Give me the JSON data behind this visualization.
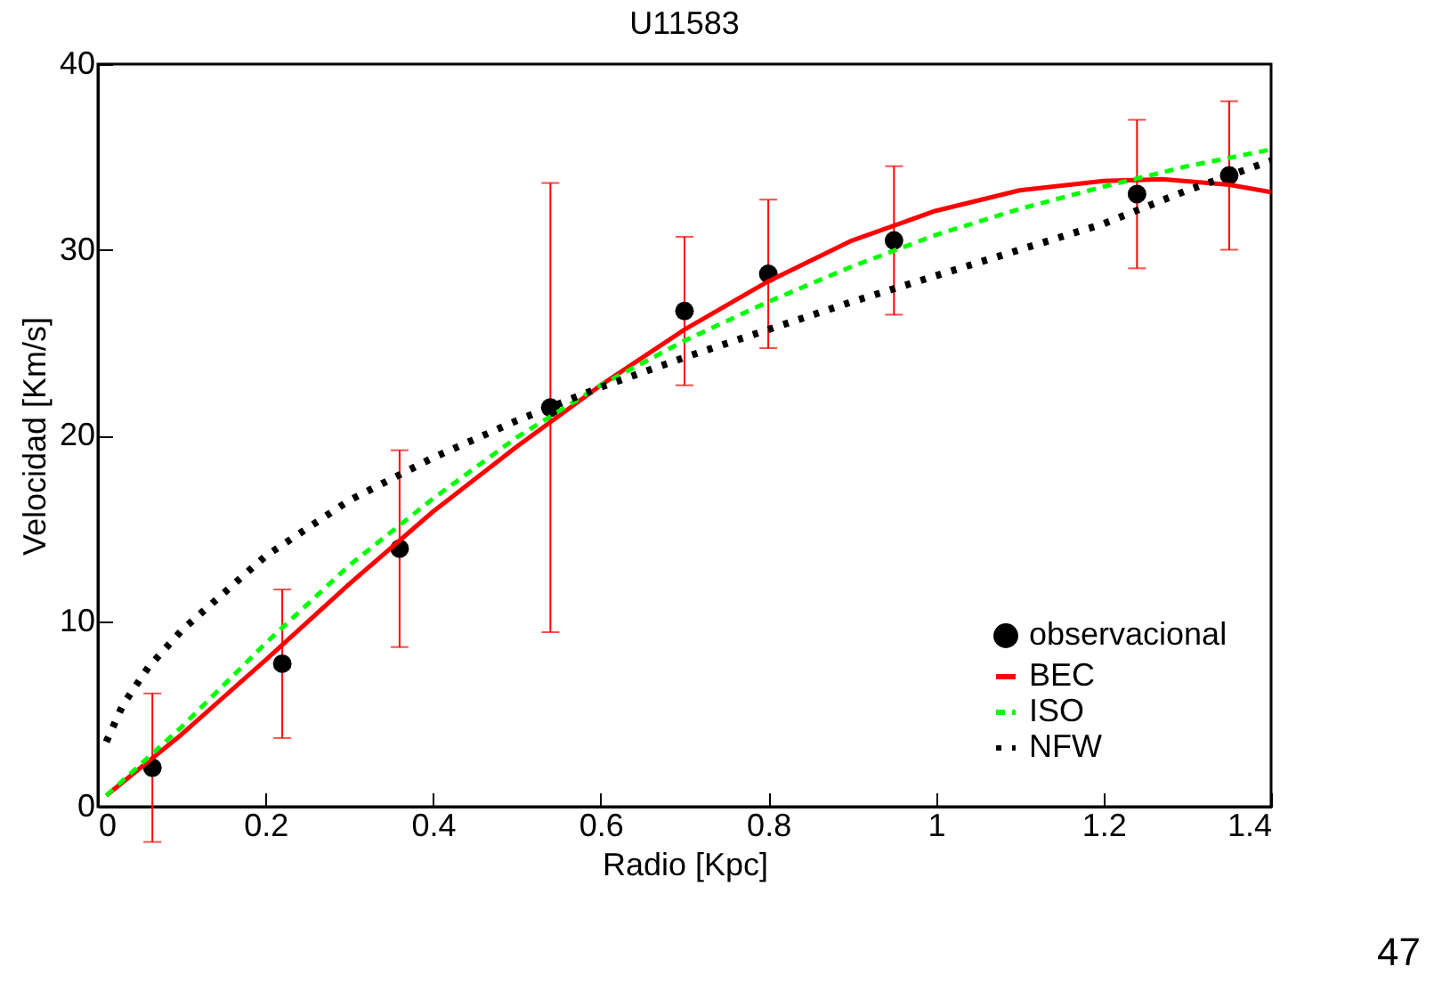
{
  "chart_data": {
    "type": "line",
    "title": "U11583",
    "xlabel": "Radio [Kpc]",
    "ylabel": "Velocidad [Km/s]",
    "xlim": [
      0,
      1.4
    ],
    "xticks": [
      0,
      0.2,
      0.4,
      0.6,
      0.8,
      1,
      1.2,
      1.4
    ],
    "ylim": [
      0,
      40
    ],
    "yticks": [
      0,
      10,
      20,
      30,
      40
    ],
    "grid": false,
    "legend": "bottom right",
    "annotations": [
      "47"
    ],
    "series": [
      {
        "name": "observacional",
        "type": "scatter",
        "marker": "circle",
        "color": "#000000",
        "x": [
          0.065,
          0.22,
          0.36,
          0.54,
          0.7,
          0.8,
          0.95,
          1.24,
          1.35
        ],
        "values": [
          2.1,
          7.7,
          13.9,
          21.5,
          26.7,
          28.7,
          30.5,
          33.0,
          34.0
        ],
        "errors": [
          4,
          4,
          5.3,
          12.1,
          4,
          4,
          4,
          4,
          4
        ]
      },
      {
        "name": "BEC",
        "line_style": "solid",
        "color": "#ff0000",
        "x": [
          0.01,
          0.1,
          0.2,
          0.3,
          0.4,
          0.5,
          0.6,
          0.7,
          0.8,
          0.9,
          1.0,
          1.1,
          1.2,
          1.27,
          1.35,
          1.4
        ],
        "values": [
          0.6,
          3.9,
          7.9,
          12.0,
          15.9,
          19.4,
          22.7,
          25.7,
          28.3,
          30.5,
          32.1,
          33.2,
          33.7,
          33.8,
          33.5,
          33.1
        ]
      },
      {
        "name": "ISO",
        "line_style": "dashed",
        "color": "#00ff00",
        "x": [
          0.01,
          0.1,
          0.2,
          0.3,
          0.4,
          0.5,
          0.6,
          0.7,
          0.8,
          0.9,
          1.0,
          1.1,
          1.2,
          1.3,
          1.4
        ],
        "values": [
          0.6,
          4.3,
          8.8,
          13.0,
          16.6,
          19.9,
          22.7,
          25.1,
          27.2,
          29.1,
          30.8,
          32.2,
          33.4,
          34.5,
          35.4
        ]
      },
      {
        "name": "NFW",
        "line_style": "dotted",
        "color": "#000000",
        "x": [
          0.01,
          0.03,
          0.06,
          0.1,
          0.2,
          0.3,
          0.4,
          0.5,
          0.6,
          0.7,
          0.8,
          0.9,
          1.0,
          1.1,
          1.2,
          1.3,
          1.4
        ],
        "values": [
          3.5,
          5.5,
          7.5,
          9.5,
          13.5,
          16.5,
          18.8,
          20.8,
          22.6,
          24.2,
          25.7,
          27.2,
          28.6,
          30.0,
          31.4,
          33.2,
          34.8
        ]
      }
    ]
  }
}
